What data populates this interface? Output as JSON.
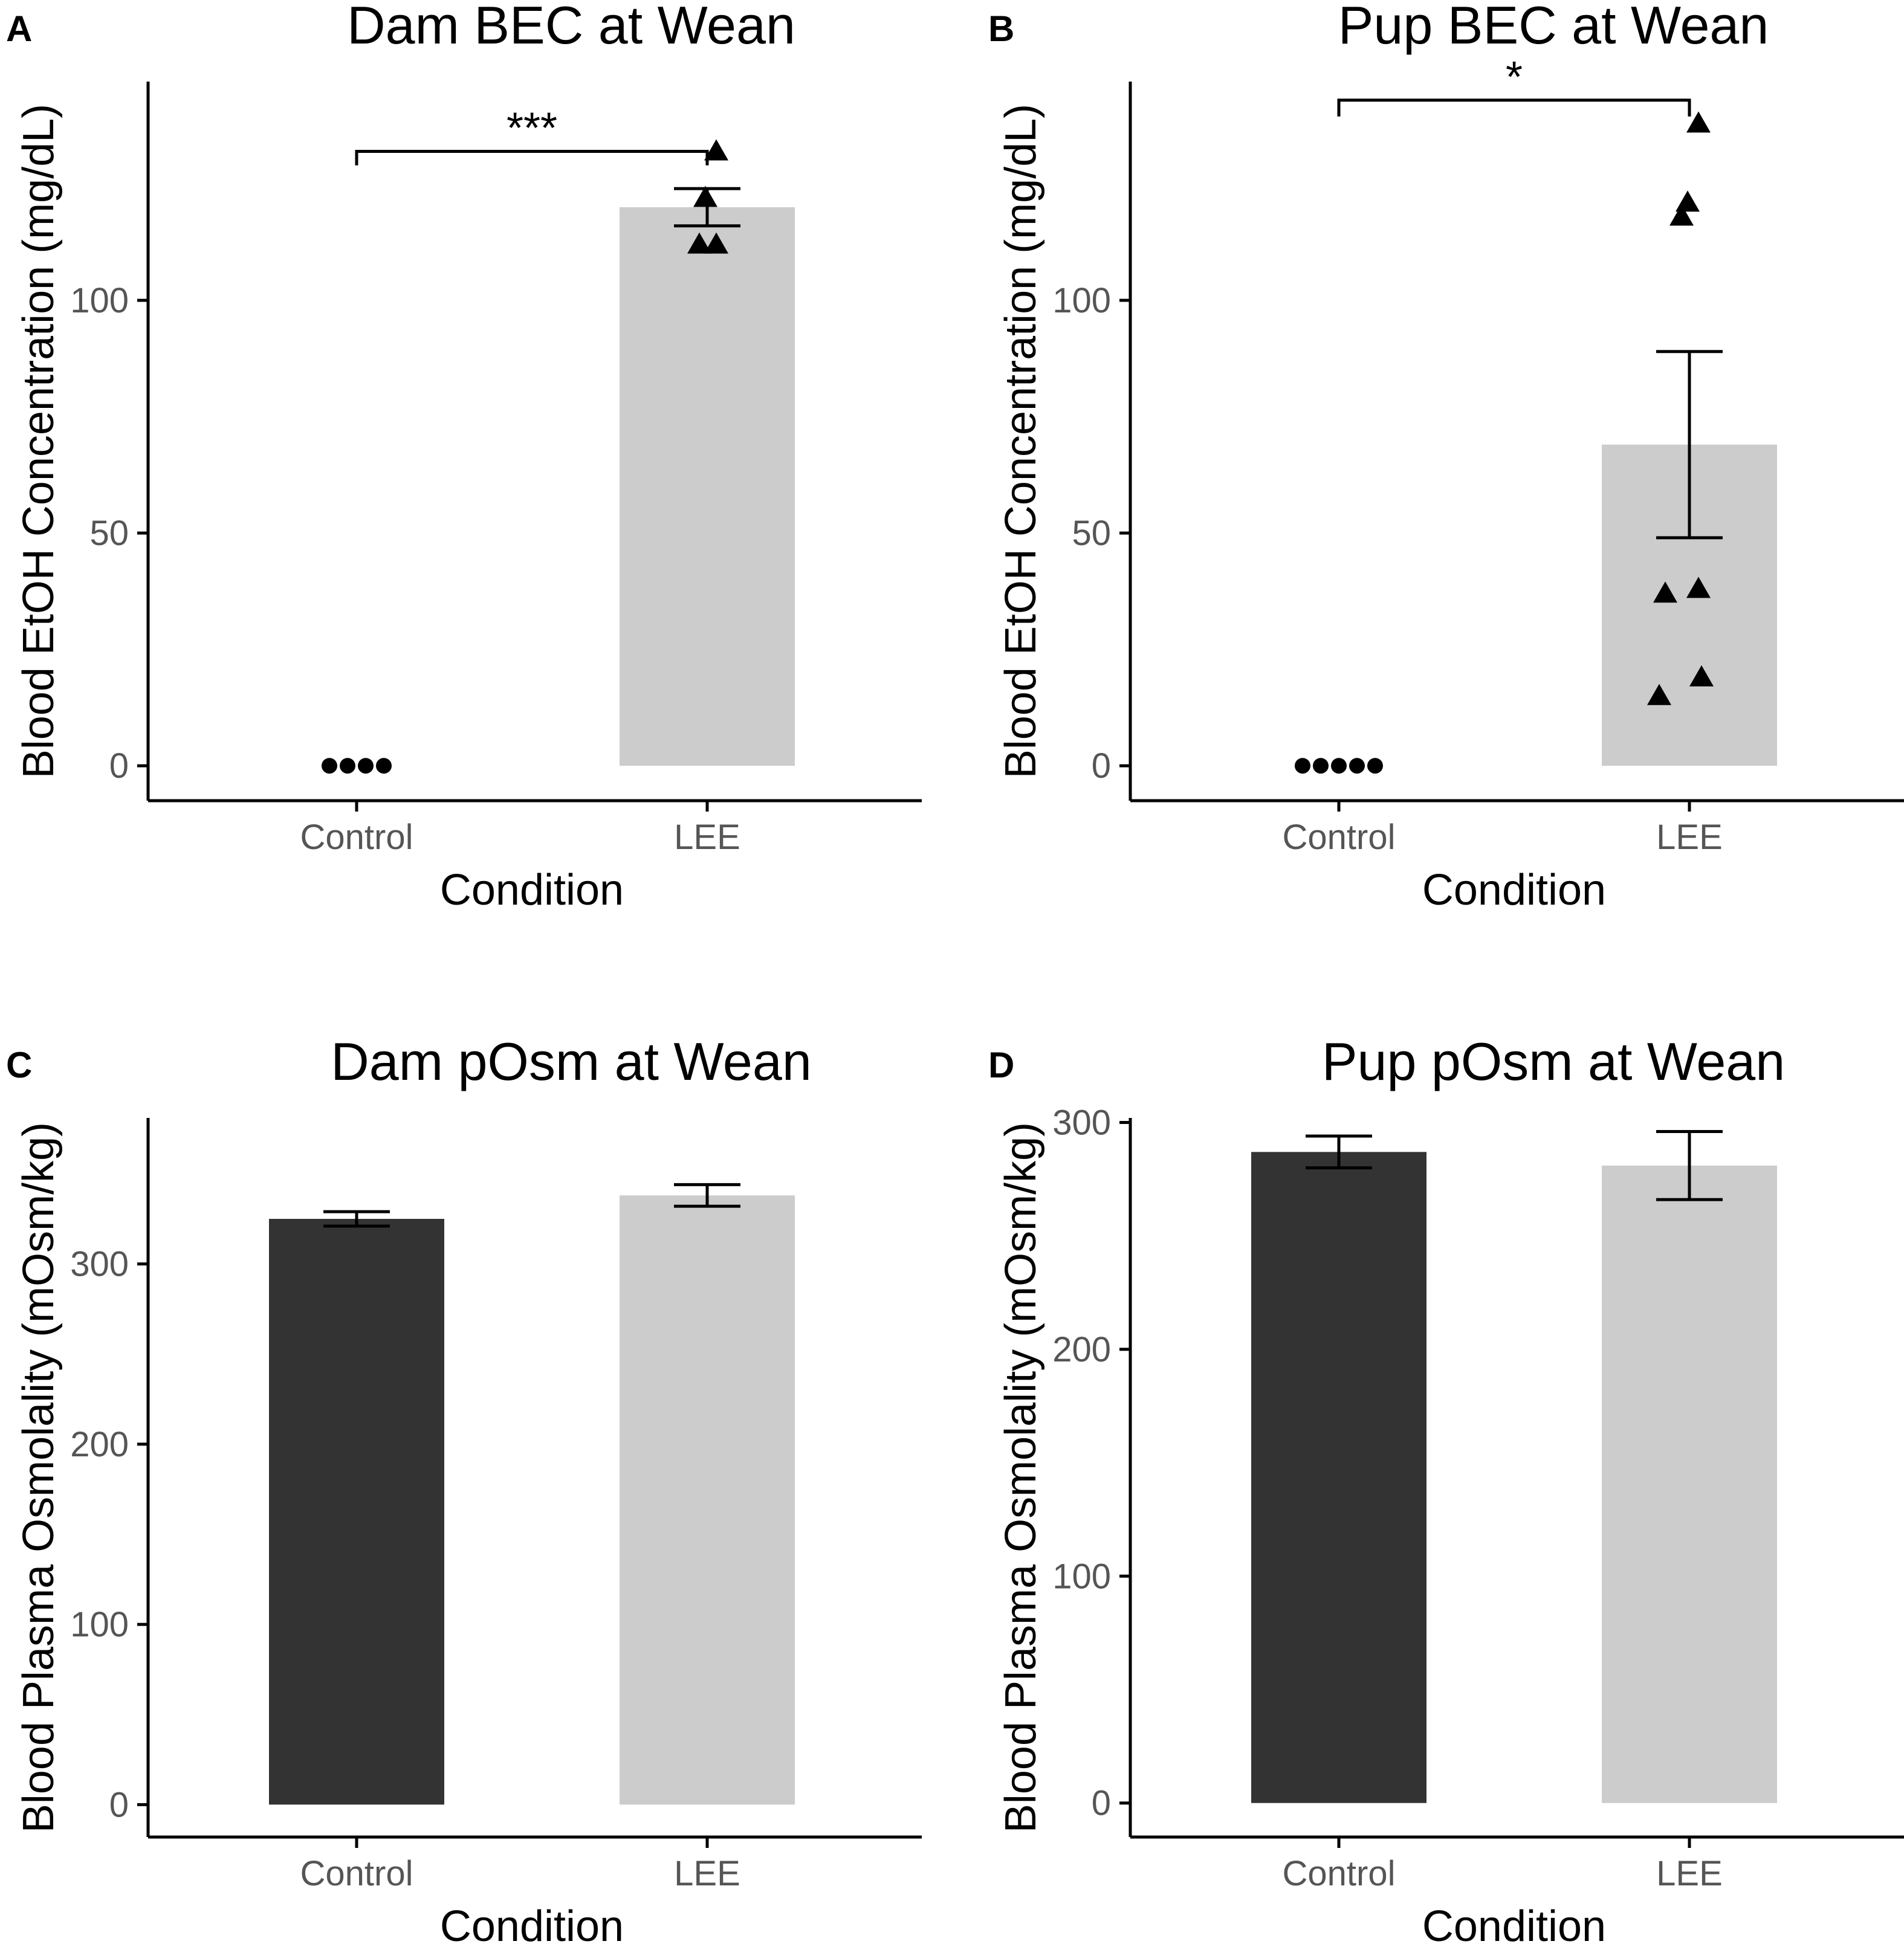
{
  "colors": {
    "control": "#333333",
    "lee": "#cccccc",
    "point": "#000000"
  },
  "chart_data": [
    {
      "letter": "A",
      "type": "bar",
      "title": "Dam BEC at Wean",
      "xlabel": "Condition",
      "ylabel": "Blood EtOH Concentration (mg/dL)",
      "categories": [
        "Control",
        "LEE"
      ],
      "values": [
        0,
        120
      ],
      "error": [
        [
          0,
          0
        ],
        [
          116,
          124
        ]
      ],
      "ylim": [
        -7.5,
        147
      ],
      "yticks": [
        0,
        50,
        100
      ],
      "tick_labels": [
        "0",
        "50",
        "100"
      ],
      "points": [
        {
          "category": "Control",
          "shape": "circle",
          "values": [
            0,
            0,
            0,
            0
          ]
        },
        {
          "category": "LEE",
          "shape": "triangle",
          "values": [
            132,
            122,
            112,
            112
          ]
        }
      ],
      "significance": {
        "label": "***",
        "from": "Control",
        "to": "LEE",
        "y": 132,
        "tip": 3
      }
    },
    {
      "letter": "B",
      "type": "bar",
      "title": "Pup BEC at Wean",
      "xlabel": "Condition",
      "ylabel": "Blood EtOH Concentration (mg/dL)",
      "categories": [
        "Control",
        "LEE"
      ],
      "values": [
        0,
        69
      ],
      "error": [
        [
          0,
          0
        ],
        [
          49,
          89
        ]
      ],
      "ylim": [
        -7.5,
        147
      ],
      "yticks": [
        0,
        50,
        100
      ],
      "tick_labels": [
        "0",
        "50",
        "100"
      ],
      "points": [
        {
          "category": "Control",
          "shape": "circle",
          "values": [
            0,
            0,
            0,
            0,
            0
          ]
        },
        {
          "category": "LEE",
          "shape": "triangle",
          "values": [
            138,
            121,
            118,
            38,
            37,
            19,
            15
          ]
        }
      ],
      "significance": {
        "label": "*",
        "from": "Control",
        "to": "LEE",
        "y": 143,
        "tip": 3.5
      }
    },
    {
      "letter": "C",
      "type": "bar",
      "title": "Dam pOsm at Wean",
      "xlabel": "Condition",
      "ylabel": "Blood Plasma Osmolality (mOsm/kg)",
      "categories": [
        "Control",
        "LEE"
      ],
      "values": [
        325,
        338
      ],
      "error": [
        [
          321,
          329
        ],
        [
          332,
          344
        ]
      ],
      "ylim": [
        -18,
        381
      ],
      "yticks": [
        0,
        100,
        200,
        300
      ],
      "tick_labels": [
        "0",
        "100",
        "200",
        "300"
      ],
      "points": [],
      "significance": null
    },
    {
      "letter": "D",
      "type": "bar",
      "title": "Pup pOsm at Wean",
      "xlabel": "Condition",
      "ylabel": "Blood Plasma Osmolality (mOsm/kg)",
      "categories": [
        "Control",
        "LEE"
      ],
      "values": [
        287,
        281
      ],
      "error": [
        [
          280,
          294
        ],
        [
          266,
          296
        ]
      ],
      "ylim": [
        -15,
        302
      ],
      "yticks": [
        0,
        100,
        200,
        300
      ],
      "tick_labels": [
        "0",
        "100",
        "200",
        "300"
      ],
      "points": [],
      "significance": null
    }
  ]
}
